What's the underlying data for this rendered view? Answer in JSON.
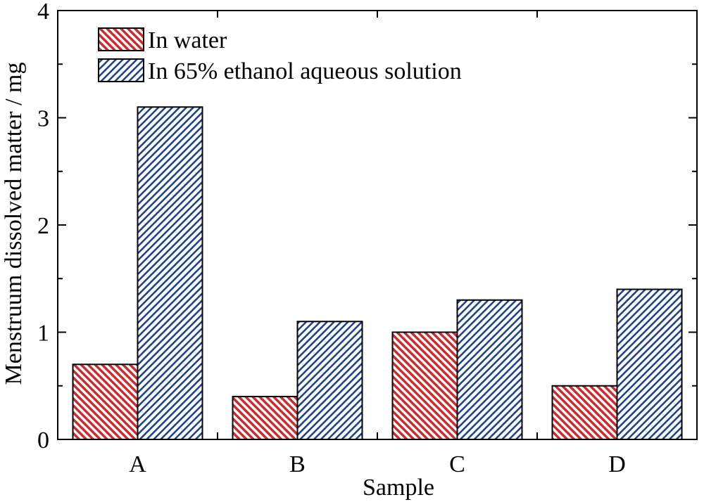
{
  "chart_data": {
    "type": "bar",
    "title": "",
    "xlabel": "Sample",
    "ylabel": "Menstruum dissolved matter / mg",
    "categories": [
      "A",
      "B",
      "C",
      "D"
    ],
    "series": [
      {
        "name": "In water",
        "values": [
          0.7,
          0.4,
          1.0,
          0.5
        ],
        "color": "#cc2a2e",
        "hatch": "red-hatch"
      },
      {
        "name": "In 65% ethanol aqueous solution",
        "values": [
          3.1,
          1.1,
          1.3,
          1.4
        ],
        "color": "#1c3f8a",
        "hatch": "blue-hatch"
      }
    ],
    "ylim": [
      0,
      4
    ],
    "yticks": [
      0,
      1,
      2,
      3,
      4
    ],
    "minor_yticks": true,
    "grid": false,
    "legend_position": "top-left"
  }
}
